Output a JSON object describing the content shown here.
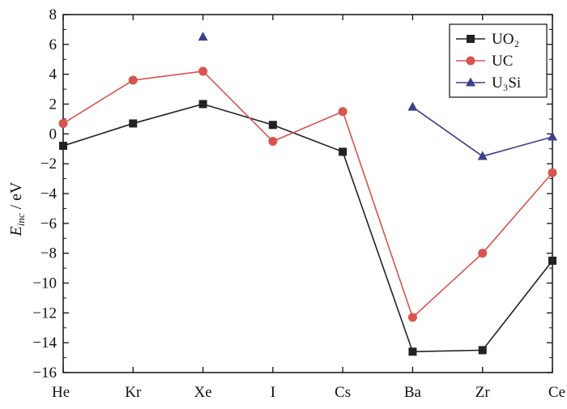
{
  "chart_data": {
    "type": "line",
    "categories": [
      "He",
      "Kr",
      "Xe",
      "I",
      "Cs",
      "Ba",
      "Zr",
      "Ce"
    ],
    "ylabel": {
      "main": "E",
      "sub": "inc",
      "unit": " / eV"
    },
    "ylim": [
      -16,
      8
    ],
    "yticks": [
      -16,
      -14,
      -12,
      -10,
      -8,
      -6,
      -4,
      -2,
      0,
      2,
      4,
      6,
      8
    ],
    "grid": false,
    "legend_position": "top-right",
    "series": [
      {
        "name": "UO₂",
        "color": "#222222",
        "marker": "square",
        "values": [
          -0.8,
          0.7,
          2.0,
          0.6,
          -1.2,
          -14.6,
          -14.5,
          -8.5
        ]
      },
      {
        "name": "UC",
        "color": "#d9534f",
        "marker": "circle",
        "values": [
          0.7,
          3.6,
          4.2,
          -0.5,
          1.5,
          -12.3,
          -8.0,
          -2.6
        ]
      },
      {
        "name": "U₃Si",
        "color": "#3d3f8f",
        "marker": "triangle",
        "values": [
          null,
          null,
          6.5,
          null,
          null,
          1.8,
          -1.5,
          -0.2
        ]
      }
    ]
  }
}
